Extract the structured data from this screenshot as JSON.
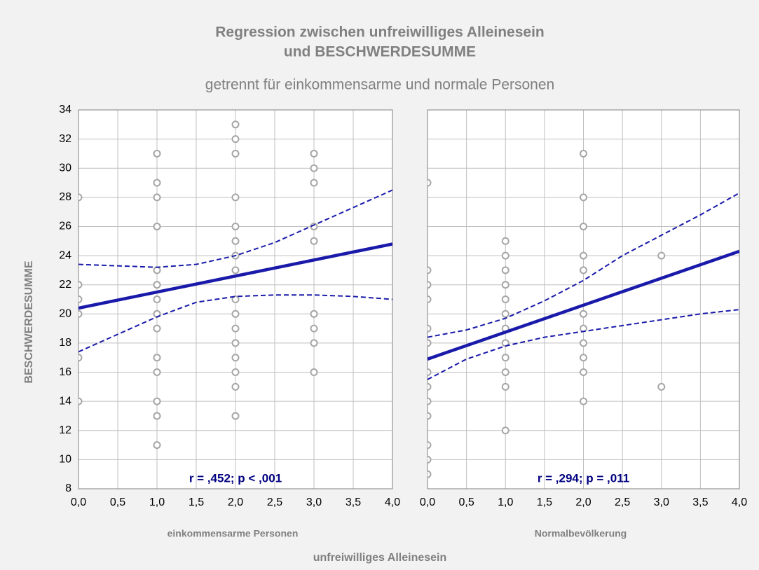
{
  "figure": {
    "title_lines": [
      "Regression zwischen unfreiwilliges Alleinesein",
      "und BESCHWERDESUMME"
    ],
    "subtitle": "getrennt für einkommensarme und normale Personen",
    "ylabel": "BESCHWERDESUMME",
    "xlabel": "unfreiwilliges Alleinesein"
  },
  "chart_data": [
    {
      "type": "scatter",
      "panel_label": "einkommensarme Personen",
      "annotation": "r = ,452;  p < ,001",
      "xlim": [
        0,
        4
      ],
      "ylim": [
        8,
        34
      ],
      "grid": true,
      "ytick_labels": true,
      "xticks": [
        {
          "value": 0,
          "label": "0,0"
        },
        {
          "value": 0.5,
          "label": "0,5"
        },
        {
          "value": 1,
          "label": "1,0"
        },
        {
          "value": 1.5,
          "label": "1,5"
        },
        {
          "value": 2,
          "label": "2,0"
        },
        {
          "value": 2.5,
          "label": "2,5"
        },
        {
          "value": 3,
          "label": "3,0"
        },
        {
          "value": 3.5,
          "label": "3,5"
        },
        {
          "value": 4,
          "label": "4,0"
        }
      ],
      "yticks": [
        8,
        10,
        12,
        14,
        16,
        18,
        20,
        22,
        24,
        26,
        28,
        30,
        32,
        34
      ],
      "points": {
        "color": "#a6a6a6",
        "x": [
          0,
          0,
          0,
          0,
          0,
          0,
          1,
          1,
          1,
          1,
          1,
          1,
          1,
          1,
          1,
          1,
          1,
          1,
          1,
          1,
          2,
          2,
          2,
          2,
          2,
          2,
          2,
          2,
          2,
          2,
          2,
          2,
          2,
          2,
          2,
          2,
          3,
          3,
          3,
          3,
          3,
          3,
          3,
          3,
          3
        ],
        "values": [
          28,
          22,
          21,
          20,
          17,
          14,
          31,
          29,
          28,
          26,
          23,
          22,
          21,
          20,
          19,
          17,
          16,
          14,
          13,
          11,
          33,
          32,
          31,
          28,
          26,
          25,
          24,
          23,
          21,
          20,
          19,
          18,
          17,
          16,
          15,
          13,
          31,
          30,
          29,
          26,
          25,
          20,
          19,
          18,
          16
        ]
      },
      "regression": {
        "color": "#1a1aaa",
        "x": [
          0,
          4
        ],
        "values": [
          20.4,
          24.8
        ]
      },
      "upper": {
        "color": "#1a1aaa",
        "x": [
          0,
          0.5,
          1,
          1.5,
          2,
          2.5,
          3,
          3.5,
          4
        ],
        "values": [
          23.4,
          23.3,
          23.2,
          23.4,
          24.0,
          24.9,
          26.1,
          27.3,
          28.5
        ]
      },
      "lower": {
        "color": "#1a1aaa",
        "x": [
          0,
          0.5,
          1,
          1.5,
          2,
          2.5,
          3,
          3.5,
          4
        ],
        "values": [
          17.4,
          18.6,
          19.8,
          20.8,
          21.2,
          21.3,
          21.3,
          21.2,
          21.0
        ]
      }
    },
    {
      "type": "scatter",
      "panel_label": "Normalbevölkerung",
      "annotation": "r = ,294;  p = ,011",
      "xlim": [
        0,
        4
      ],
      "ylim": [
        8,
        34
      ],
      "grid": true,
      "ytick_labels": false,
      "xticks": [
        {
          "value": 0,
          "label": "0,0"
        },
        {
          "value": 0.5,
          "label": "0,5"
        },
        {
          "value": 1,
          "label": "1,0"
        },
        {
          "value": 1.5,
          "label": "1,5"
        },
        {
          "value": 2,
          "label": "2,0"
        },
        {
          "value": 2.5,
          "label": "2,5"
        },
        {
          "value": 3,
          "label": "3,0"
        },
        {
          "value": 3.5,
          "label": "3,5"
        },
        {
          "value": 4,
          "label": "4,0"
        }
      ],
      "yticks": [
        8,
        10,
        12,
        14,
        16,
        18,
        20,
        22,
        24,
        26,
        28,
        30,
        32,
        34
      ],
      "points": {
        "color": "#a6a6a6",
        "x": [
          0,
          0,
          0,
          0,
          0,
          0,
          0,
          0,
          0,
          0,
          0,
          0,
          0,
          1,
          1,
          1,
          1,
          1,
          1,
          1,
          1,
          1,
          1,
          1,
          1,
          2,
          2,
          2,
          2,
          2,
          2,
          2,
          2,
          2,
          2,
          2,
          3,
          3
        ],
        "values": [
          29,
          23,
          22,
          21,
          19,
          18,
          16,
          15,
          14,
          13,
          11,
          10,
          9,
          25,
          24,
          23,
          22,
          21,
          20,
          19,
          18,
          17,
          16,
          15,
          12,
          31,
          28,
          26,
          24,
          23,
          20,
          19,
          18,
          17,
          16,
          14,
          24,
          15
        ]
      },
      "regression": {
        "color": "#1a1aaa",
        "x": [
          0,
          4
        ],
        "values": [
          16.9,
          24.3
        ]
      },
      "upper": {
        "color": "#1a1aaa",
        "x": [
          0,
          0.5,
          1,
          1.5,
          2,
          2.5,
          3,
          3.5,
          4
        ],
        "values": [
          18.4,
          18.9,
          19.7,
          20.9,
          22.3,
          24.0,
          25.4,
          26.8,
          28.3
        ]
      },
      "lower": {
        "color": "#1a1aaa",
        "x": [
          0,
          0.5,
          1,
          1.5,
          2,
          2.5,
          3,
          3.5,
          4
        ],
        "values": [
          15.5,
          16.9,
          17.8,
          18.4,
          18.8,
          19.2,
          19.6,
          20.0,
          20.3
        ]
      }
    }
  ]
}
